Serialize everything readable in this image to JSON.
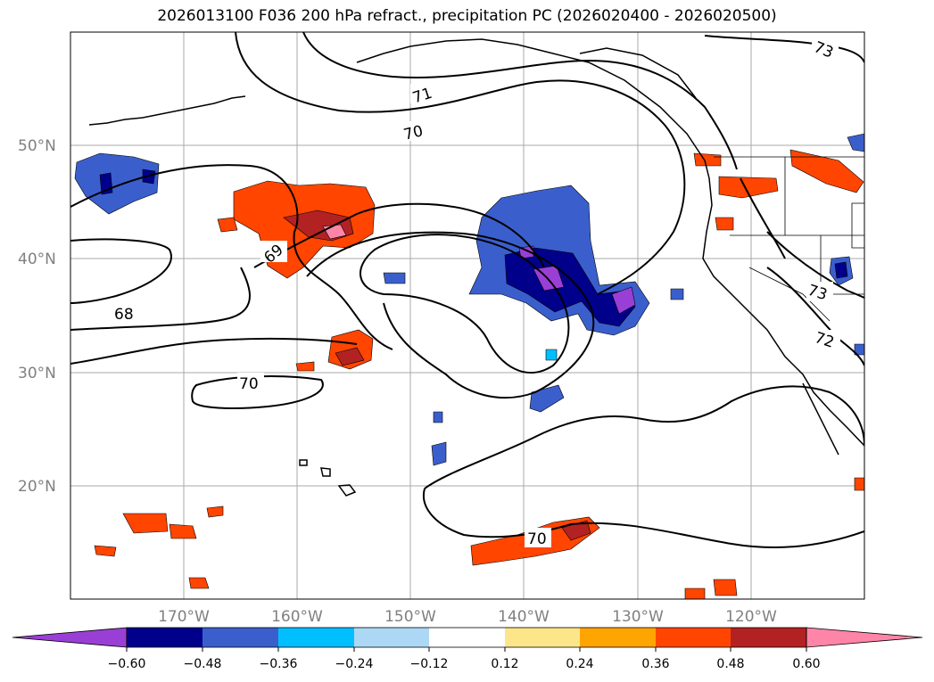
{
  "title": "2026013100 F036 200 hPa refract., precipitation PC (2026020400 - 2026020500)",
  "latitude_labels": [
    "50°N",
    "40°N",
    "30°N",
    "20°N"
  ],
  "longitude_labels": [
    "170°W",
    "160°W",
    "150°W",
    "140°W",
    "130°W",
    "120°W"
  ],
  "contour_labels": [
    "73",
    "71",
    "70",
    "69",
    "68",
    "70",
    "73",
    "72",
    "70"
  ],
  "colorbar": {
    "tick_labels": [
      "−0.60",
      "−0.48",
      "−0.36",
      "−0.24",
      "−0.12",
      "0.12",
      "0.24",
      "0.36",
      "0.48",
      "0.60"
    ],
    "colors": [
      "#9a3fd6",
      "#00008b",
      "#3a5fcd",
      "#00bfff",
      "#add8f5",
      "#ffffff",
      "#fde68a",
      "#ffa500",
      "#ff4500",
      "#b22222",
      "#ff85a8"
    ]
  },
  "palette": {
    "coastline": "#000000",
    "contour": "#000000",
    "grid": "#a9a9a9"
  }
}
